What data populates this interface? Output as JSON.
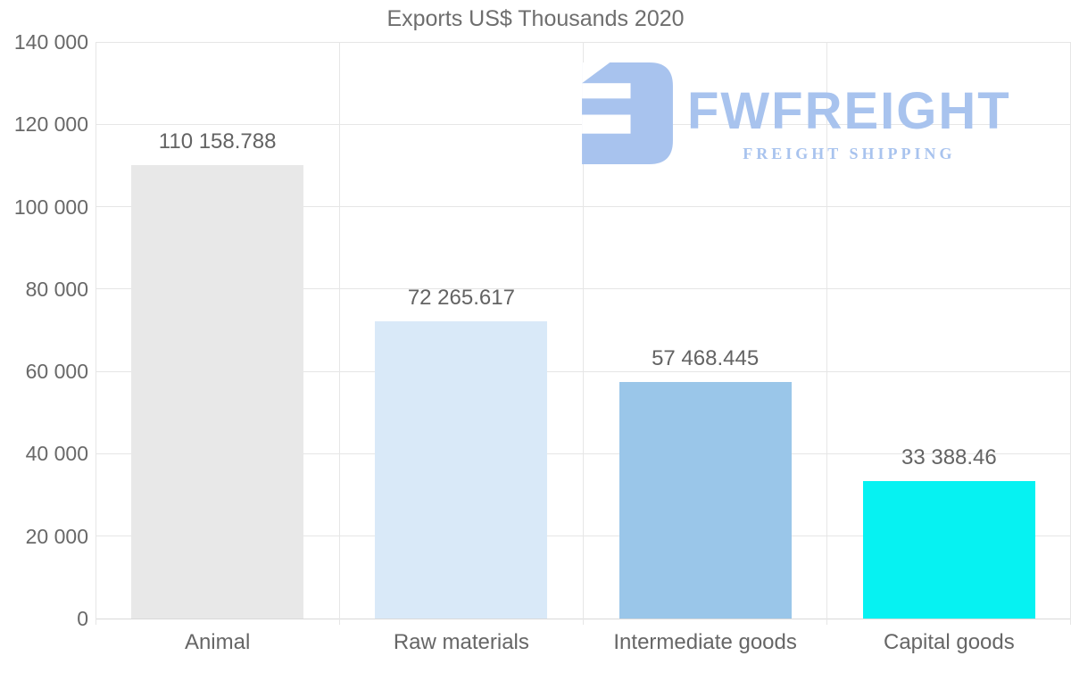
{
  "title": "Exports US$ Thousands 2020",
  "watermark": {
    "brand": "FWFREIGHT",
    "tagline": "FREIGHT SHIPPING",
    "color": "#a8c3ee",
    "icon": "fwfreight-logo-icon"
  },
  "chart_data": {
    "type": "bar",
    "title": "Exports US$ Thousands 2020",
    "categories": [
      "Animal",
      "Raw materials",
      "Intermediate goods",
      "Capital goods"
    ],
    "values": [
      110158.788,
      72265.617,
      57468.445,
      33388.46
    ],
    "value_labels": [
      "110 158.788",
      "72 265.617",
      "57 468.445",
      "33 388.46"
    ],
    "bar_colors": [
      "#e8e8e8",
      "#d9e9f8",
      "#9ac6e9",
      "#06f2f2"
    ],
    "xlabel": "",
    "ylabel": "",
    "ylim": [
      0,
      140000
    ],
    "ytick_interval": 20000,
    "ytick_labels": [
      "0",
      "20 000",
      "40 000",
      "60 000",
      "80 000",
      "100 000",
      "120 000",
      "140 000"
    ],
    "grid": true,
    "legend": false,
    "gridline_color": "#e6e6e6",
    "text_color": "#666666"
  }
}
